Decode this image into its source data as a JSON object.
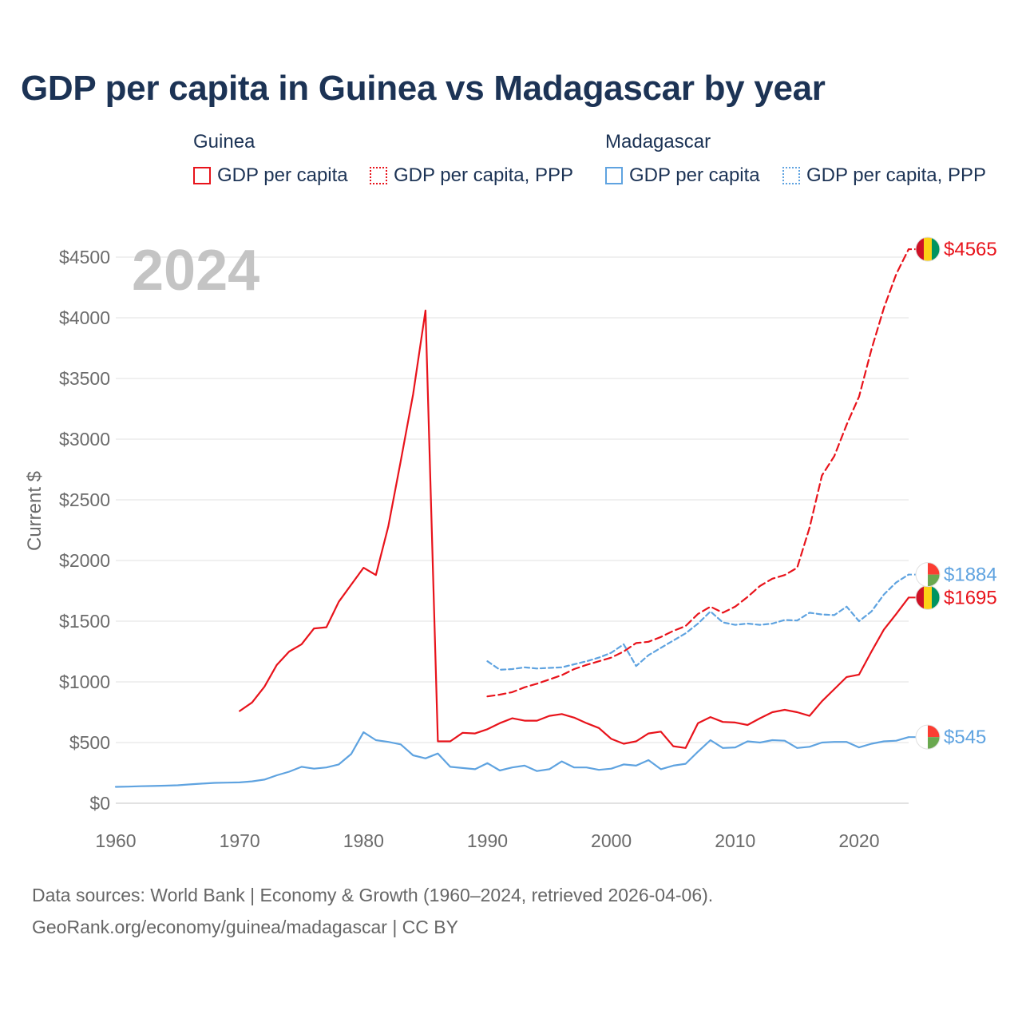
{
  "title": "GDP per capita in Guinea vs Madagascar by year",
  "legend": {
    "groups": [
      {
        "name": "Guinea",
        "items": [
          {
            "label": "GDP per capita",
            "style": "solid",
            "color": "#e8131b"
          },
          {
            "label": "GDP per capita, PPP",
            "style": "dotted",
            "color": "#e8131b"
          }
        ]
      },
      {
        "name": "Madagascar",
        "items": [
          {
            "label": "GDP per capita",
            "style": "solid",
            "color": "#5fa3e0"
          },
          {
            "label": "GDP per capita, PPP",
            "style": "dotted",
            "color": "#5fa3e0"
          }
        ]
      }
    ]
  },
  "year_watermark": "2024",
  "footer": {
    "line1": "Data sources: World Bank | Economy & Growth (1960–2024, retrieved 2026-04-06).",
    "line2": "GeoRank.org/economy/guinea/madagascar | CC BY"
  },
  "chart_data": {
    "type": "line",
    "title": "GDP per capita in Guinea vs Madagascar by year",
    "xlabel": "",
    "ylabel": "Current $",
    "xlim": [
      1960,
      2024
    ],
    "ylim": [
      0,
      4500
    ],
    "x_ticks": [
      1960,
      1970,
      1980,
      1990,
      2000,
      2010,
      2020
    ],
    "y_ticks": [
      0,
      500,
      1000,
      1500,
      2000,
      2500,
      3000,
      3500,
      4000,
      4500
    ],
    "y_tick_labels": [
      "$0",
      "$500",
      "$1000",
      "$1500",
      "$2000",
      "$2500",
      "$3000",
      "$3500",
      "$4000",
      "$4500"
    ],
    "grid": true,
    "series": [
      {
        "name": "Guinea GDP per capita",
        "color": "#e8131b",
        "dash": "solid",
        "end_label": "$1695",
        "flag": "guinea",
        "start_year": 1970,
        "values": [
          760,
          830,
          960,
          1140,
          1250,
          1310,
          1440,
          1450,
          1660,
          1800,
          1940,
          1880,
          2280,
          2820,
          3370,
          4060,
          510,
          510,
          580,
          575,
          610,
          660,
          700,
          680,
          680,
          720,
          735,
          705,
          660,
          620,
          530,
          490,
          510,
          575,
          590,
          470,
          455,
          660,
          710,
          670,
          665,
          645,
          700,
          750,
          770,
          750,
          720,
          840,
          940,
          1040,
          1060,
          1250,
          1430,
          1560,
          1695
        ]
      },
      {
        "name": "Guinea GDP per capita, PPP",
        "color": "#e8131b",
        "dash": "dashed",
        "end_label": "$4565",
        "flag": "guinea",
        "start_year": 1990,
        "values": [
          880,
          895,
          915,
          955,
          985,
          1020,
          1055,
          1105,
          1140,
          1170,
          1200,
          1250,
          1320,
          1330,
          1370,
          1420,
          1460,
          1560,
          1620,
          1570,
          1620,
          1700,
          1790,
          1850,
          1880,
          1940,
          2270,
          2700,
          2860,
          3120,
          3350,
          3740,
          4080,
          4360,
          4565
        ]
      },
      {
        "name": "Madagascar GDP per capita",
        "color": "#5fa3e0",
        "dash": "solid",
        "end_label": "$545",
        "flag": "madagascar",
        "start_year": 1960,
        "values": [
          135,
          137,
          140,
          142,
          145,
          148,
          155,
          162,
          168,
          170,
          172,
          180,
          195,
          230,
          260,
          300,
          285,
          295,
          320,
          405,
          585,
          520,
          505,
          485,
          395,
          370,
          410,
          300,
          290,
          280,
          330,
          270,
          295,
          310,
          265,
          280,
          345,
          295,
          295,
          275,
          285,
          320,
          310,
          355,
          280,
          310,
          325,
          425,
          520,
          455,
          460,
          510,
          500,
          520,
          515,
          455,
          465,
          500,
          505,
          505,
          460,
          490,
          510,
          515,
          545
        ]
      },
      {
        "name": "Madagascar GDP per capita, PPP",
        "color": "#5fa3e0",
        "dash": "dotted",
        "end_label": "$1884",
        "flag": "madagascar",
        "start_year": 1990,
        "values": [
          1170,
          1100,
          1105,
          1120,
          1110,
          1115,
          1120,
          1145,
          1170,
          1200,
          1240,
          1310,
          1130,
          1220,
          1280,
          1340,
          1400,
          1480,
          1580,
          1490,
          1470,
          1480,
          1470,
          1480,
          1510,
          1505,
          1570,
          1555,
          1550,
          1620,
          1500,
          1580,
          1720,
          1820,
          1884
        ]
      }
    ]
  }
}
